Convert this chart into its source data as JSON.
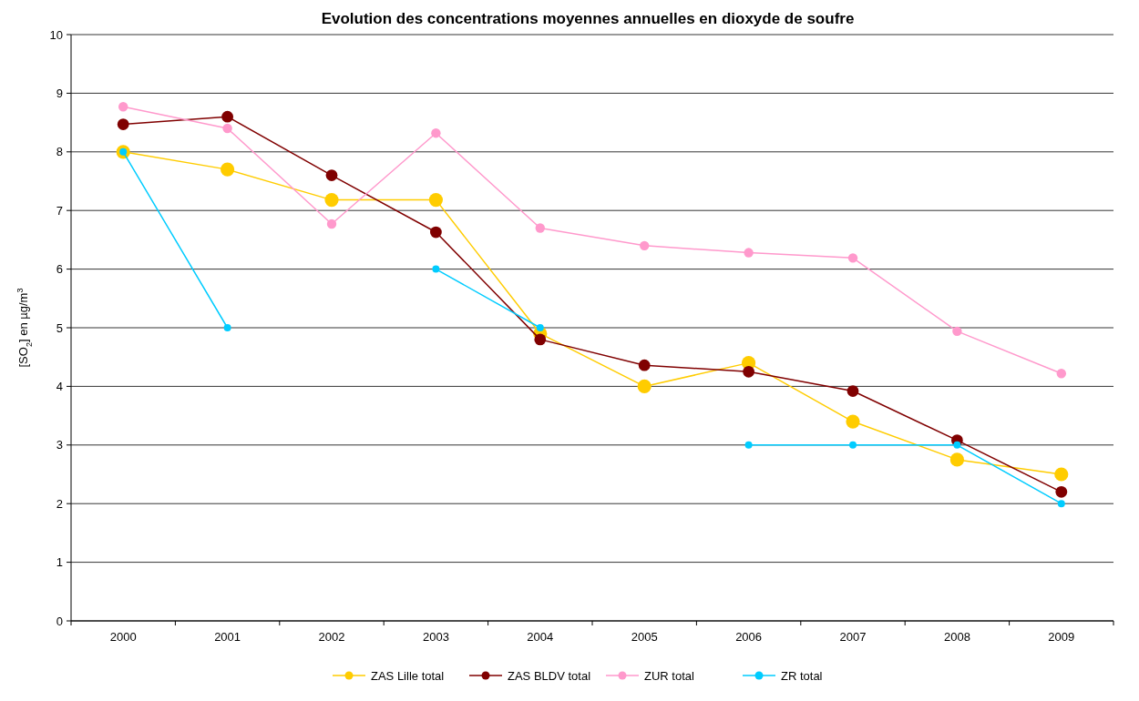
{
  "chart_data": {
    "type": "line",
    "title": "Evolution des concentrations moyennes annuelles en dioxyde de soufre",
    "ylabel": "[SO$_{2}$] en µg/m$^{3}$",
    "categories": [
      "2000",
      "2001",
      "2002",
      "2003",
      "2004",
      "2005",
      "2006",
      "2007",
      "2008",
      "2009"
    ],
    "series": [
      {
        "name": "ZAS Lille total",
        "color": "#ffcc00",
        "values": [
          8.0,
          7.7,
          7.18,
          7.18,
          4.9,
          4.0,
          4.4,
          3.4,
          2.75,
          2.5
        ]
      },
      {
        "name": "ZAS BLDV total",
        "color": "#800000",
        "values": [
          8.47,
          8.6,
          7.6,
          6.63,
          4.8,
          4.36,
          4.25,
          3.92,
          3.08,
          2.2
        ]
      },
      {
        "name": "ZUR total",
        "color": "#ff99cc",
        "values": [
          8.77,
          8.4,
          6.77,
          8.32,
          6.7,
          6.4,
          6.28,
          6.19,
          4.94,
          4.22
        ]
      },
      {
        "name": "ZR total",
        "color": "#00ccff",
        "values": [
          8,
          5,
          null,
          6,
          5,
          null,
          3,
          3,
          3,
          2
        ]
      }
    ],
    "ylim": [
      0,
      10
    ],
    "yticks": [
      0,
      1,
      2,
      3,
      4,
      5,
      6,
      7,
      8,
      9,
      10
    ],
    "grid": "y",
    "legend": "bottom",
    "marker": "circle",
    "line_style": "solid"
  }
}
